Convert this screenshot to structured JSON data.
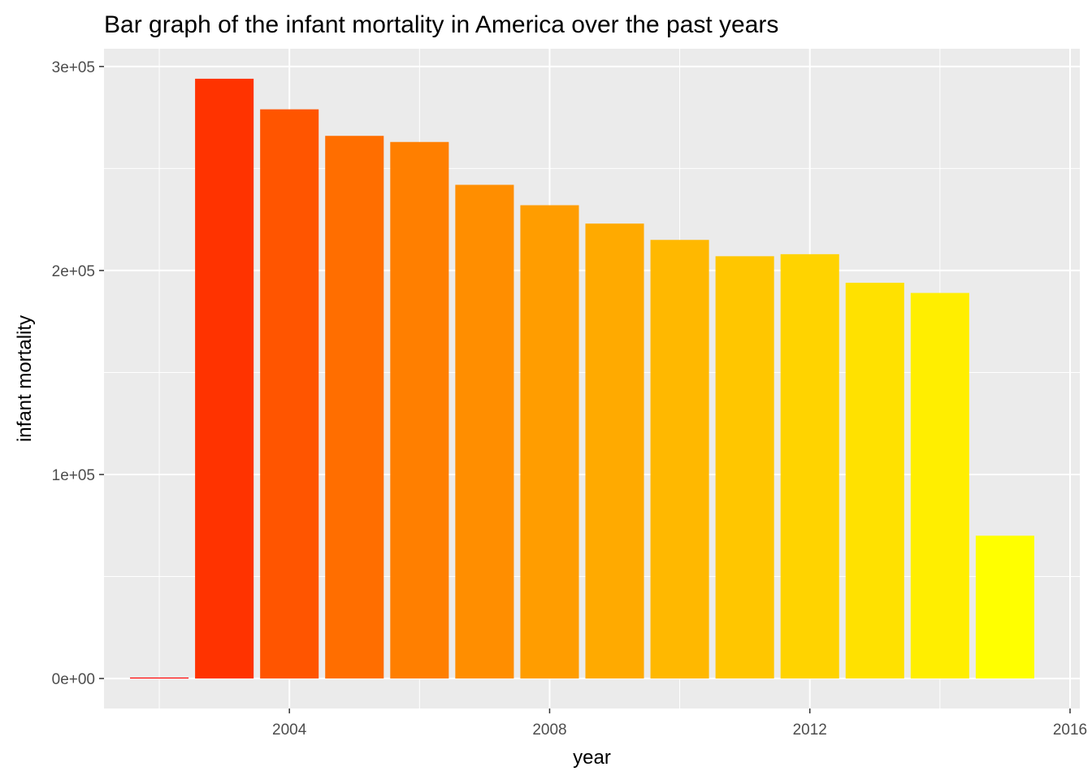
{
  "chart_data": {
    "type": "bar",
    "title": "Bar graph of the infant mortality in America over the past years",
    "xlabel": "year",
    "ylabel": "infant mortality",
    "x": [
      2002,
      2003,
      2004,
      2005,
      2006,
      2007,
      2008,
      2009,
      2010,
      2011,
      2012,
      2013,
      2014,
      2015
    ],
    "values": [
      300,
      294000,
      279000,
      266000,
      263000,
      242000,
      232000,
      223000,
      215000,
      207000,
      208000,
      194000,
      189000,
      70000
    ],
    "colors": [
      "#FF0000",
      "#FF3300",
      "#FF5500",
      "#FF6E00",
      "#FF7F00",
      "#FF8E00",
      "#FF9D00",
      "#FFAA00",
      "#FFB800",
      "#FFC600",
      "#FFD300",
      "#FFE100",
      "#FFEE00",
      "#FFFF00"
    ],
    "xlim": [
      2001.15,
      2016.15
    ],
    "ylim": [
      -14700,
      308700
    ],
    "x_ticks": [
      2004,
      2008,
      2012,
      2016
    ],
    "x_tick_labels": [
      "2004",
      "2008",
      "2012",
      "2016"
    ],
    "y_ticks": [
      0,
      100000,
      200000,
      300000
    ],
    "y_tick_labels": [
      "0e+00",
      "1e+05",
      "2e+05",
      "3e+05"
    ],
    "grid": true,
    "legend": "none",
    "panel_background": "#EBEBEB",
    "grid_color": "#FFFFFF"
  }
}
